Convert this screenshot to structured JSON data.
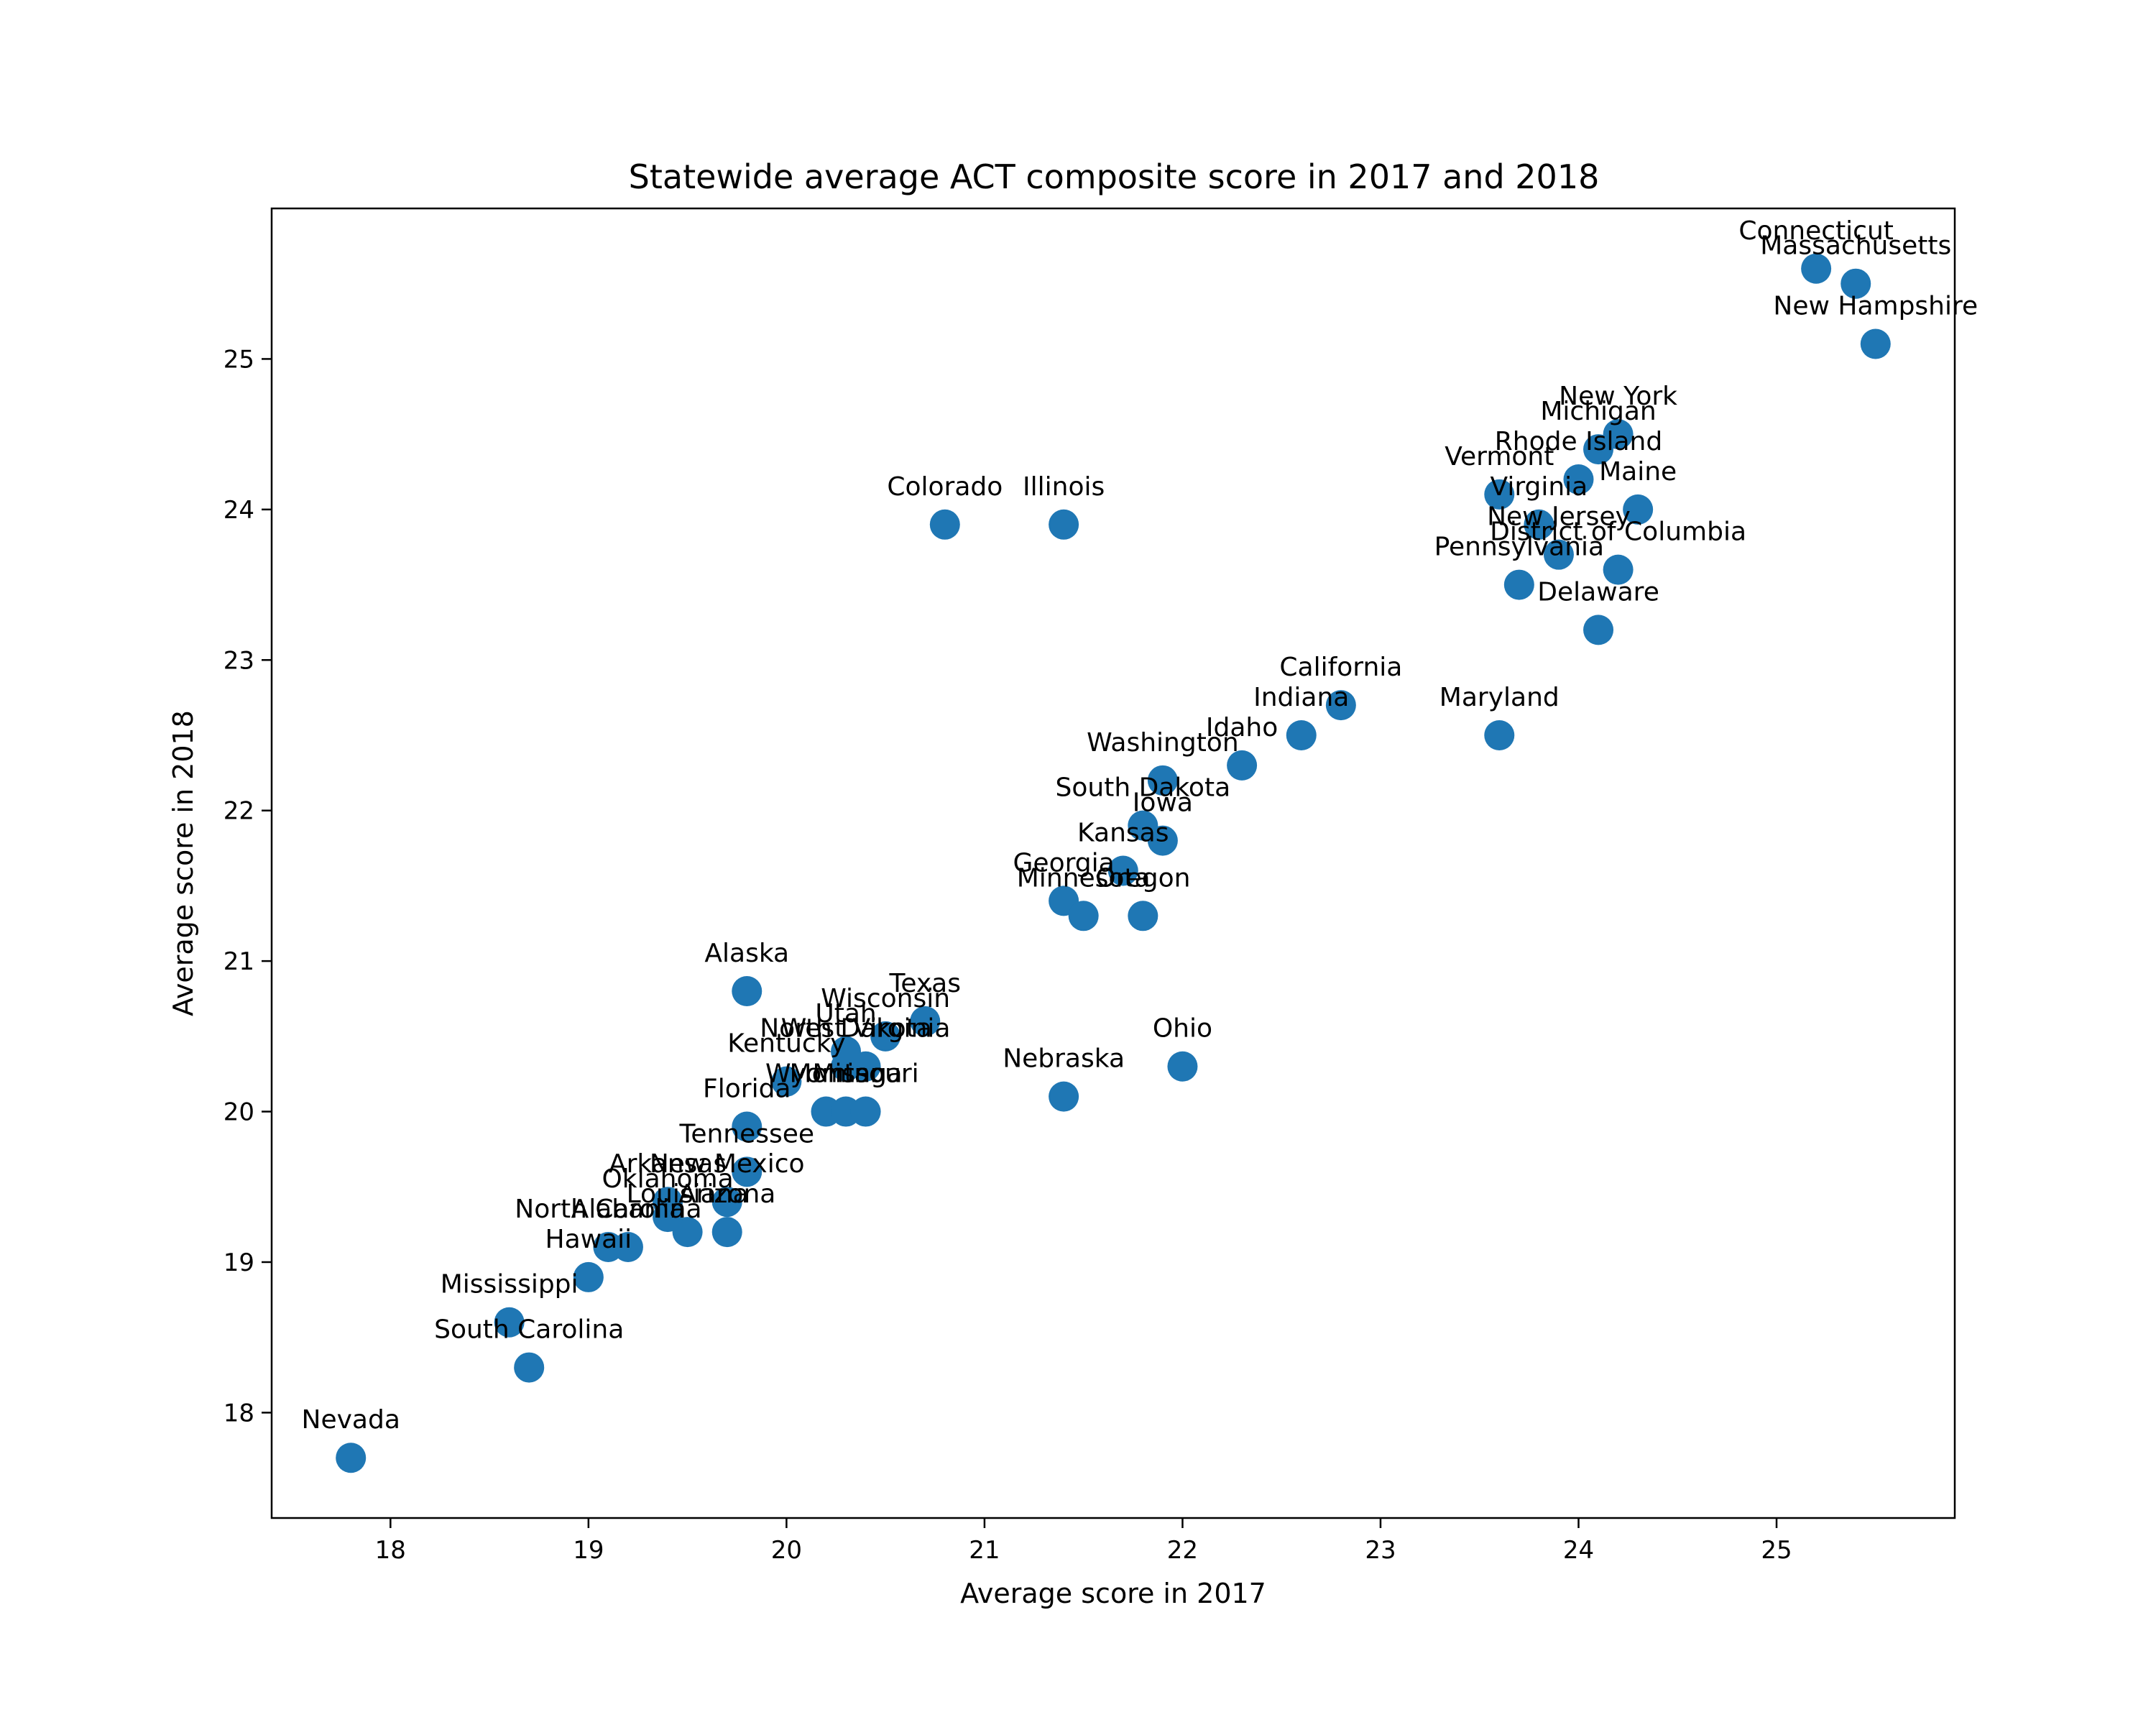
{
  "chart_data": {
    "type": "scatter",
    "title": "Statewide average ACT composite score in 2017 and 2018",
    "xlabel": "Average score in 2017",
    "ylabel": "Average score in 2018",
    "xlim": [
      17.4,
      25.9
    ],
    "ylim": [
      17.3,
      26.0
    ],
    "xticks": [
      18,
      19,
      20,
      21,
      22,
      23,
      24,
      25
    ],
    "yticks": [
      18,
      19,
      20,
      21,
      22,
      23,
      24,
      25
    ],
    "grid": false,
    "marker_color": "#1f77b4",
    "points": [
      {
        "label": "Nevada",
        "x": 17.8,
        "y": 17.7
      },
      {
        "label": "South Carolina",
        "x": 18.7,
        "y": 18.3
      },
      {
        "label": "Mississippi",
        "x": 18.6,
        "y": 18.6
      },
      {
        "label": "Hawaii",
        "x": 19.0,
        "y": 18.9
      },
      {
        "label": "North Carolina",
        "x": 19.1,
        "y": 19.1
      },
      {
        "label": "Alabama",
        "x": 19.2,
        "y": 19.1
      },
      {
        "label": "Louisiana",
        "x": 19.5,
        "y": 19.2
      },
      {
        "label": "Arizona",
        "x": 19.7,
        "y": 19.2
      },
      {
        "label": "Oklahoma",
        "x": 19.4,
        "y": 19.3
      },
      {
        "label": "Arkansas",
        "x": 19.4,
        "y": 19.4
      },
      {
        "label": "New Mexico",
        "x": 19.7,
        "y": 19.4
      },
      {
        "label": "Tennessee",
        "x": 19.8,
        "y": 19.6
      },
      {
        "label": "Florida",
        "x": 19.8,
        "y": 19.9
      },
      {
        "label": "Kentucky",
        "x": 20.0,
        "y": 20.2
      },
      {
        "label": "Wyoming",
        "x": 20.2,
        "y": 20.0
      },
      {
        "label": "Montana",
        "x": 20.3,
        "y": 20.0
      },
      {
        "label": "Missouri",
        "x": 20.4,
        "y": 20.0
      },
      {
        "label": "North Dakota",
        "x": 20.3,
        "y": 20.3
      },
      {
        "label": "Utah",
        "x": 20.3,
        "y": 20.4
      },
      {
        "label": "West Virginia",
        "x": 20.4,
        "y": 20.3
      },
      {
        "label": "Wisconsin",
        "x": 20.5,
        "y": 20.5
      },
      {
        "label": "Texas",
        "x": 20.7,
        "y": 20.6
      },
      {
        "label": "Alaska",
        "x": 19.8,
        "y": 20.8
      },
      {
        "label": "Nebraska",
        "x": 21.4,
        "y": 20.1
      },
      {
        "label": "Ohio",
        "x": 22.0,
        "y": 20.3
      },
      {
        "label": "Georgia",
        "x": 21.4,
        "y": 21.4
      },
      {
        "label": "Minnesota",
        "x": 21.5,
        "y": 21.3
      },
      {
        "label": "Oregon",
        "x": 21.8,
        "y": 21.3
      },
      {
        "label": "Kansas",
        "x": 21.7,
        "y": 21.6
      },
      {
        "label": "Iowa",
        "x": 21.9,
        "y": 21.8
      },
      {
        "label": "South Dakota",
        "x": 21.8,
        "y": 21.9
      },
      {
        "label": "Washington",
        "x": 21.9,
        "y": 22.2
      },
      {
        "label": "Idaho",
        "x": 22.3,
        "y": 22.3
      },
      {
        "label": "Indiana",
        "x": 22.6,
        "y": 22.5
      },
      {
        "label": "California",
        "x": 22.8,
        "y": 22.7
      },
      {
        "label": "Maryland",
        "x": 23.6,
        "y": 22.5
      },
      {
        "label": "Colorado",
        "x": 20.8,
        "y": 23.9
      },
      {
        "label": "Illinois",
        "x": 21.4,
        "y": 23.9
      },
      {
        "label": "Delaware",
        "x": 24.1,
        "y": 23.2
      },
      {
        "label": "Pennsylvania",
        "x": 23.7,
        "y": 23.5
      },
      {
        "label": "District of Columbia",
        "x": 24.2,
        "y": 23.6
      },
      {
        "label": "New Jersey",
        "x": 23.9,
        "y": 23.7
      },
      {
        "label": "Virginia",
        "x": 23.8,
        "y": 23.9
      },
      {
        "label": "Maine",
        "x": 24.3,
        "y": 24.0
      },
      {
        "label": "Vermont",
        "x": 23.6,
        "y": 24.1
      },
      {
        "label": "Rhode Island",
        "x": 24.0,
        "y": 24.2
      },
      {
        "label": "Michigan",
        "x": 24.1,
        "y": 24.4
      },
      {
        "label": "New York",
        "x": 24.2,
        "y": 24.5
      },
      {
        "label": "New Hampshire",
        "x": 25.5,
        "y": 25.1
      },
      {
        "label": "Massachusetts",
        "x": 25.4,
        "y": 25.5
      },
      {
        "label": "Connecticut",
        "x": 25.2,
        "y": 25.6
      }
    ]
  }
}
